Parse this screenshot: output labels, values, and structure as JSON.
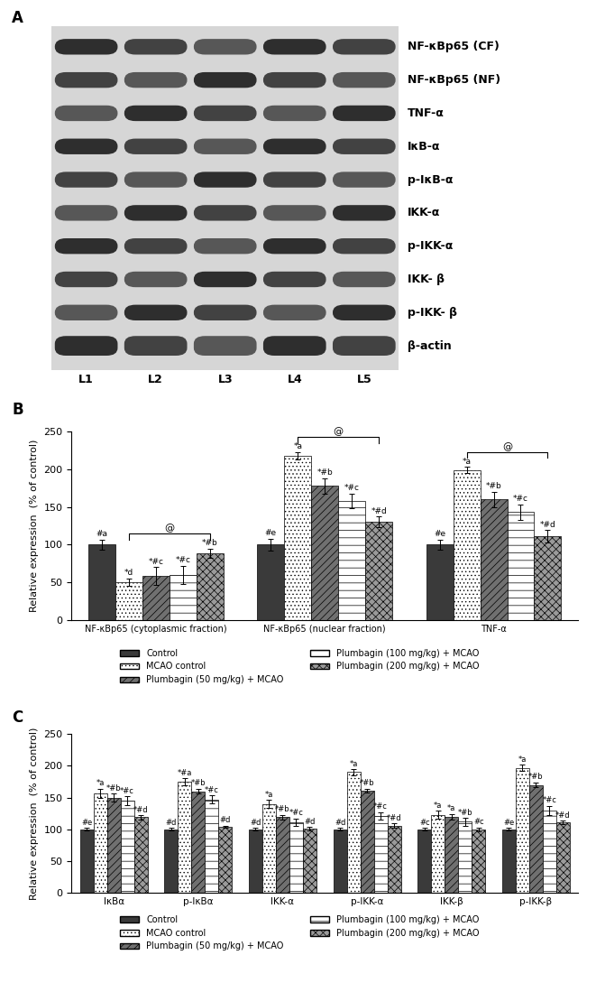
{
  "blot": {
    "panel_label": "A",
    "rows": [
      "NF-κBp65 (CF)",
      "NF-κBp65 (NF)",
      "TNF-α",
      "IκB-α",
      "p-IκB-α",
      "IKK-α",
      "p-IKK-α",
      "IKK- β",
      "p-IKK- β",
      "β-actin"
    ],
    "lanes": [
      "L1",
      "L2",
      "L3",
      "L4",
      "L5"
    ]
  },
  "chart_data": [
    {
      "type": "bar",
      "panel_label": "B",
      "y_label": "Relative expression  (% of control)",
      "categories": [
        "NF-κBp65 (cytoplasmic fraction)",
        "NF-κBp65 (nuclear fraction)",
        "TNF-α"
      ],
      "ylim": [
        0,
        250
      ],
      "yticks": [
        0,
        50,
        100,
        150,
        200,
        250
      ],
      "legend": "upper center",
      "series": [
        {
          "name": "Control",
          "color": "#3a3a3a",
          "values": [
            100,
            100,
            100
          ],
          "errors": [
            7,
            8,
            7
          ],
          "annotations": [
            "#a",
            "#e",
            "#e"
          ]
        },
        {
          "name": "MCAO control",
          "color": "#ffffff",
          "values": [
            50,
            218,
            199
          ],
          "errors": [
            5,
            5,
            4
          ],
          "annotations": [
            "*d",
            "*a",
            "*a"
          ]
        },
        {
          "name": "Plumbagin (50 mg/kg) + MCAO",
          "color": "#707070",
          "values": [
            58,
            178,
            160
          ],
          "errors": [
            12,
            10,
            10
          ],
          "annotations": [
            "*#c",
            "*#b",
            "*#b"
          ]
        },
        {
          "name": "Plumbagin (100 mg/kg) + MCAO",
          "color": "#ffffff",
          "values": [
            60,
            158,
            143
          ],
          "errors": [
            12,
            10,
            10
          ],
          "annotations": [
            "*#c",
            "*#c",
            "*#c"
          ]
        },
        {
          "name": "Plumbagin (200 mg/kg) + MCAO",
          "color": "#9a9a9a",
          "values": [
            89,
            130,
            111
          ],
          "errors": [
            6,
            7,
            8
          ],
          "annotations": [
            "*#b",
            "*#d",
            "*#d"
          ]
        }
      ],
      "comparisons": [
        {
          "category": "NF-κBp65 (cytoplasmic fraction)",
          "from": "MCAO control",
          "to": "Plumbagin (200 mg/kg) + MCAO",
          "label": "@"
        },
        {
          "category": "NF-κBp65 (nuclear fraction)",
          "from": "MCAO control",
          "to": "Plumbagin (200 mg/kg) + MCAO",
          "label": "@"
        },
        {
          "category": "TNF-α",
          "from": "MCAO control",
          "to": "Plumbagin (200 mg/kg) + MCAO",
          "label": "@"
        }
      ]
    },
    {
      "type": "bar",
      "panel_label": "C",
      "y_label": "Relative expression  (% of control)",
      "categories": [
        "IκBα",
        "p-IκBα",
        "IKK-α",
        "p-IKK-α",
        "IKK-β",
        "p-IKK-β"
      ],
      "ylim": [
        0,
        250
      ],
      "yticks": [
        0,
        50,
        100,
        150,
        200,
        250
      ],
      "legend": "upper center",
      "series": [
        {
          "name": "Control",
          "color": "#3a3a3a",
          "values": [
            100,
            100,
            100,
            100,
            100,
            100
          ],
          "errors": [
            2,
            2,
            2,
            2,
            2,
            2
          ],
          "annotations": [
            "#e",
            "#d",
            "#d",
            "#d",
            "#c",
            "#e"
          ]
        },
        {
          "name": "MCAO control",
          "color": "#ffffff",
          "values": [
            157,
            175,
            140,
            190,
            123,
            197
          ],
          "errors": [
            7,
            5,
            6,
            5,
            6,
            5
          ],
          "annotations": [
            "*a",
            "*#a",
            "*a",
            "*a",
            "*a",
            "*a"
          ]
        },
        {
          "name": "Plumbagin (50 mg/kg) + MCAO",
          "color": "#707070",
          "values": [
            150,
            160,
            119,
            161,
            120,
            170
          ],
          "errors": [
            6,
            4,
            4,
            3,
            4,
            4
          ],
          "annotations": [
            "*#b",
            "*#b",
            "*#b",
            "*#b",
            "*a",
            "*#b"
          ]
        },
        {
          "name": "Plumbagin (100 mg/kg) + MCAO",
          "color": "#ffffff",
          "values": [
            145,
            147,
            111,
            121,
            112,
            130
          ],
          "errors": [
            7,
            6,
            6,
            6,
            6,
            7
          ],
          "annotations": [
            "*#c",
            "*#c",
            "*#c",
            "*#c",
            "*#b",
            "*#c"
          ]
        },
        {
          "name": "Plumbagin (200 mg/kg) + MCAO",
          "color": "#9a9a9a",
          "values": [
            119,
            104,
            101,
            106,
            100,
            111
          ],
          "errors": [
            3,
            2,
            3,
            3,
            3,
            3
          ],
          "annotations": [
            "*#d",
            "#d",
            "#d",
            "*#d",
            "#c",
            "*#d"
          ]
        }
      ]
    }
  ]
}
